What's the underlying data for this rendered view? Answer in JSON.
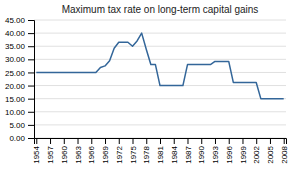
{
  "chart_data": {
    "type": "line",
    "title": "Maximum tax rate on long-term capital gains",
    "x": [
      1954,
      1955,
      1956,
      1957,
      1958,
      1959,
      1960,
      1961,
      1962,
      1963,
      1964,
      1965,
      1966,
      1967,
      1968,
      1969,
      1970,
      1971,
      1972,
      1973,
      1974,
      1975,
      1976,
      1977,
      1978,
      1979,
      1980,
      1981,
      1982,
      1983,
      1984,
      1985,
      1986,
      1987,
      1988,
      1989,
      1990,
      1991,
      1992,
      1993,
      1994,
      1995,
      1996,
      1997,
      1998,
      1999,
      2000,
      2001,
      2002,
      2003,
      2004,
      2005,
      2006,
      2007,
      2008
    ],
    "values": [
      25.0,
      25.0,
      25.0,
      25.0,
      25.0,
      25.0,
      25.0,
      25.0,
      25.0,
      25.0,
      25.0,
      25.0,
      25.0,
      25.0,
      26.9,
      27.5,
      29.5,
      34.25,
      36.5,
      36.5,
      36.5,
      35.0,
      37.0,
      40.0,
      33.85,
      28.0,
      28.0,
      20.0,
      20.0,
      20.0,
      20.0,
      20.0,
      20.0,
      28.0,
      28.0,
      28.0,
      28.0,
      28.0,
      28.0,
      29.19,
      29.19,
      29.19,
      29.19,
      21.19,
      21.19,
      21.19,
      21.19,
      21.19,
      21.19,
      15.0,
      15.0,
      15.0,
      15.0,
      15.0,
      15.0
    ],
    "xlim": [
      1953.5,
      2008.5
    ],
    "xticks": [
      1954,
      1957,
      1960,
      1963,
      1966,
      1969,
      1972,
      1975,
      1978,
      1981,
      1984,
      1987,
      1990,
      1993,
      1996,
      1999,
      2002,
      2005,
      2008
    ],
    "ylim": [
      0.0,
      45.0
    ],
    "yticks": [
      {
        "value": 0.0,
        "label": "0.00"
      },
      {
        "value": 5.0,
        "label": "5.00"
      },
      {
        "value": 10.0,
        "label": "10.00"
      },
      {
        "value": 15.0,
        "label": "15.00"
      },
      {
        "value": 20.0,
        "label": "20.00"
      },
      {
        "value": 25.0,
        "label": "25.00"
      },
      {
        "value": 30.0,
        "label": "30.00"
      },
      {
        "value": 35.0,
        "label": "35.00"
      },
      {
        "value": 40.0,
        "label": "40.00"
      },
      {
        "value": 45.0,
        "label": "45.00"
      }
    ],
    "color": "#336699",
    "grid": true
  }
}
